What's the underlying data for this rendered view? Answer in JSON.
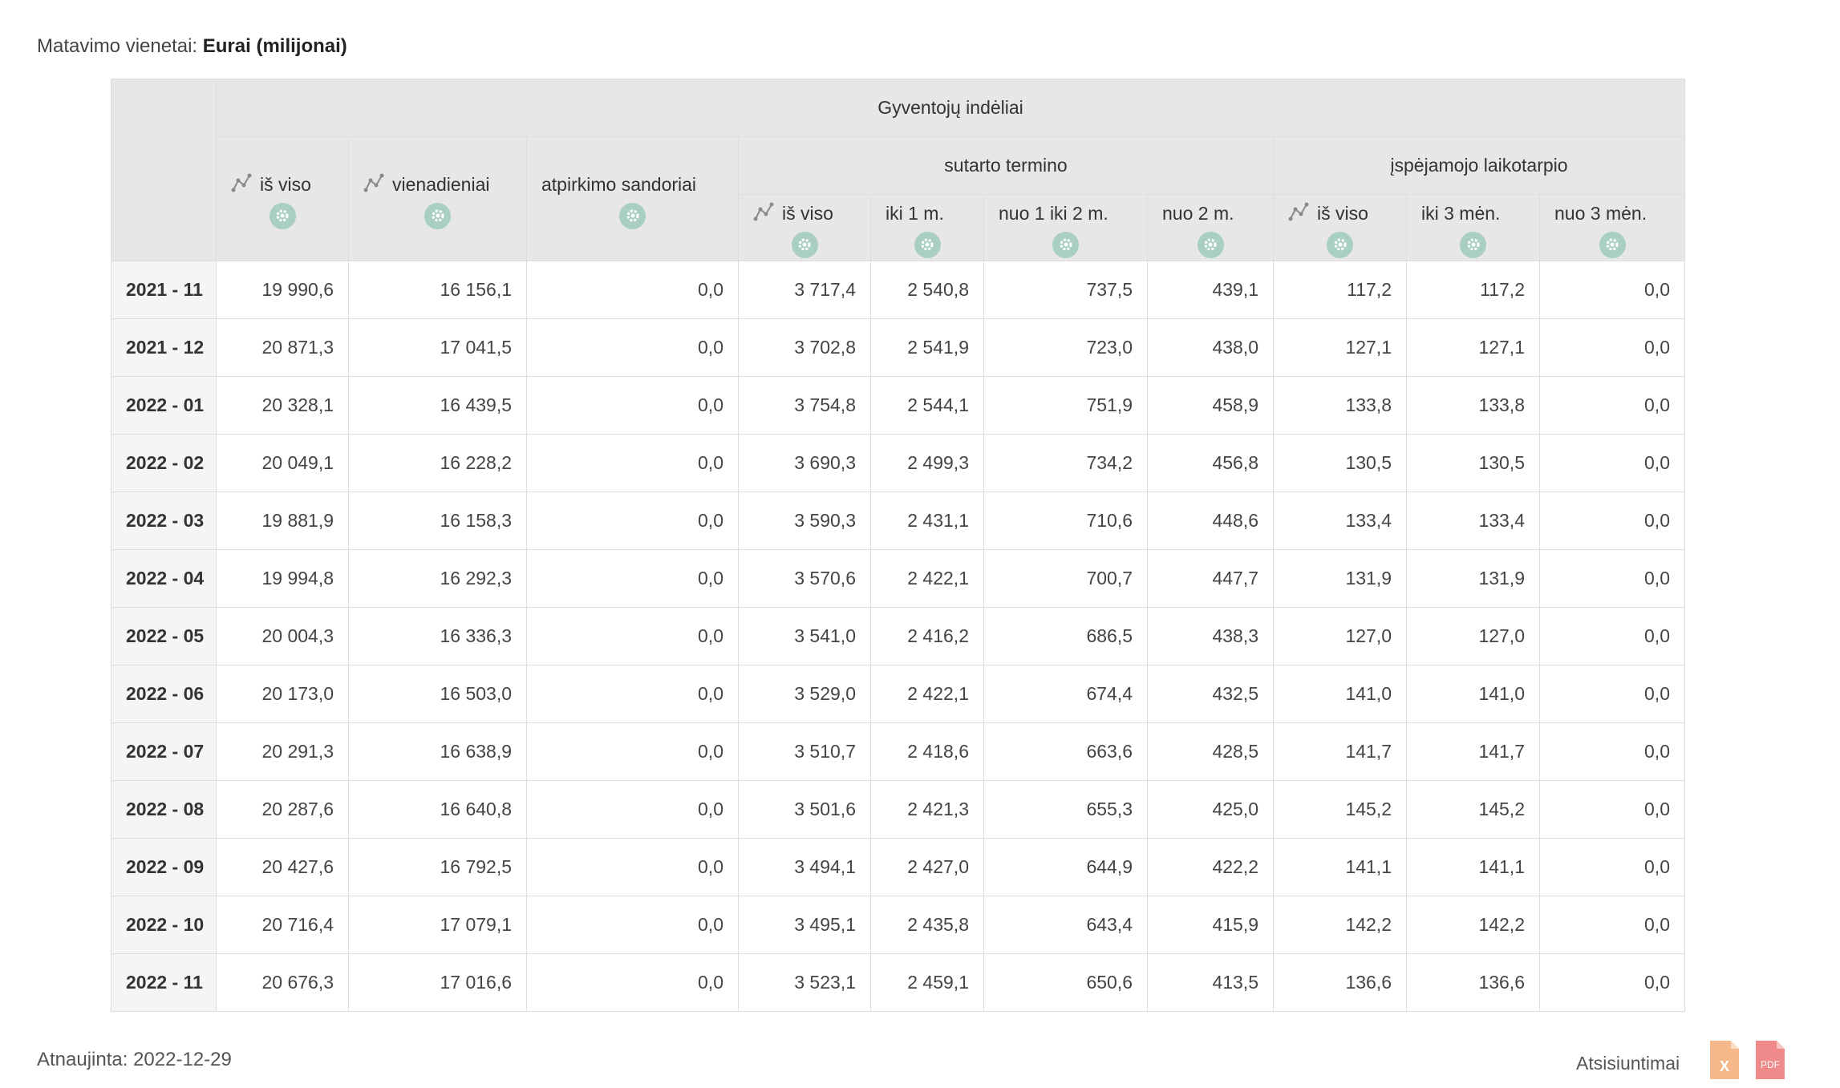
{
  "units": {
    "label": "Matavimo vienetai:",
    "value": "Eurai (milijonai)"
  },
  "table": {
    "top_header": "Gyventojų indėliai",
    "groups": {
      "term": "sutarto termino",
      "notice": "įspėjamojo laikotarpio"
    },
    "columns": [
      {
        "label": "iš viso",
        "trend": true
      },
      {
        "label": "vienadieniai",
        "trend": true
      },
      {
        "label": "atpirkimo sandoriai",
        "trend": false
      },
      {
        "label": "iš viso",
        "trend": true
      },
      {
        "label": "iki 1 m.",
        "trend": false
      },
      {
        "label": "nuo 1 iki 2 m.",
        "trend": false
      },
      {
        "label": "nuo 2 m.",
        "trend": false
      },
      {
        "label": "iš viso",
        "trend": true
      },
      {
        "label": "iki 3 mėn.",
        "trend": false
      },
      {
        "label": "nuo 3 mėn.",
        "trend": false
      }
    ],
    "rows": [
      {
        "date": "2021 - 11",
        "values": [
          "19 990,6",
          "16 156,1",
          "0,0",
          "3 717,4",
          "2 540,8",
          "737,5",
          "439,1",
          "117,2",
          "117,2",
          "0,0"
        ]
      },
      {
        "date": "2021 - 12",
        "values": [
          "20 871,3",
          "17 041,5",
          "0,0",
          "3 702,8",
          "2 541,9",
          "723,0",
          "438,0",
          "127,1",
          "127,1",
          "0,0"
        ]
      },
      {
        "date": "2022 - 01",
        "values": [
          "20 328,1",
          "16 439,5",
          "0,0",
          "3 754,8",
          "2 544,1",
          "751,9",
          "458,9",
          "133,8",
          "133,8",
          "0,0"
        ]
      },
      {
        "date": "2022 - 02",
        "values": [
          "20 049,1",
          "16 228,2",
          "0,0",
          "3 690,3",
          "2 499,3",
          "734,2",
          "456,8",
          "130,5",
          "130,5",
          "0,0"
        ]
      },
      {
        "date": "2022 - 03",
        "values": [
          "19 881,9",
          "16 158,3",
          "0,0",
          "3 590,3",
          "2 431,1",
          "710,6",
          "448,6",
          "133,4",
          "133,4",
          "0,0"
        ]
      },
      {
        "date": "2022 - 04",
        "values": [
          "19 994,8",
          "16 292,3",
          "0,0",
          "3 570,6",
          "2 422,1",
          "700,7",
          "447,7",
          "131,9",
          "131,9",
          "0,0"
        ]
      },
      {
        "date": "2022 - 05",
        "values": [
          "20 004,3",
          "16 336,3",
          "0,0",
          "3 541,0",
          "2 416,2",
          "686,5",
          "438,3",
          "127,0",
          "127,0",
          "0,0"
        ]
      },
      {
        "date": "2022 - 06",
        "values": [
          "20 173,0",
          "16 503,0",
          "0,0",
          "3 529,0",
          "2 422,1",
          "674,4",
          "432,5",
          "141,0",
          "141,0",
          "0,0"
        ]
      },
      {
        "date": "2022 - 07",
        "values": [
          "20 291,3",
          "16 638,9",
          "0,0",
          "3 510,7",
          "2 418,6",
          "663,6",
          "428,5",
          "141,7",
          "141,7",
          "0,0"
        ]
      },
      {
        "date": "2022 - 08",
        "values": [
          "20 287,6",
          "16 640,8",
          "0,0",
          "3 501,6",
          "2 421,3",
          "655,3",
          "425,0",
          "145,2",
          "145,2",
          "0,0"
        ]
      },
      {
        "date": "2022 - 09",
        "values": [
          "20 427,6",
          "16 792,5",
          "0,0",
          "3 494,1",
          "2 427,0",
          "644,9",
          "422,2",
          "141,1",
          "141,1",
          "0,0"
        ]
      },
      {
        "date": "2022 - 10",
        "values": [
          "20 716,4",
          "17 079,1",
          "0,0",
          "3 495,1",
          "2 435,8",
          "643,4",
          "415,9",
          "142,2",
          "142,2",
          "0,0"
        ]
      },
      {
        "date": "2022 - 11",
        "values": [
          "20 676,3",
          "17 016,6",
          "0,0",
          "3 523,1",
          "2 459,1",
          "650,6",
          "413,5",
          "136,6",
          "136,6",
          "0,0"
        ]
      }
    ]
  },
  "footer": {
    "updated": "Atnaujinta: 2022-12-29",
    "downloads_label": "Atsisiuntimai",
    "excel_text": "X",
    "pdf_text": "PDF"
  },
  "colors": {
    "header_bg": "#e7e7e7",
    "date_col_bg": "#f5f5f5",
    "gear_bg": "#a8cfc0",
    "excel": "#f5b88a",
    "pdf": "#f08a8a"
  },
  "icons": {
    "trend": "trend-line-icon",
    "settings": "gear-icon",
    "excel": "excel-file-icon",
    "pdf": "pdf-file-icon"
  }
}
